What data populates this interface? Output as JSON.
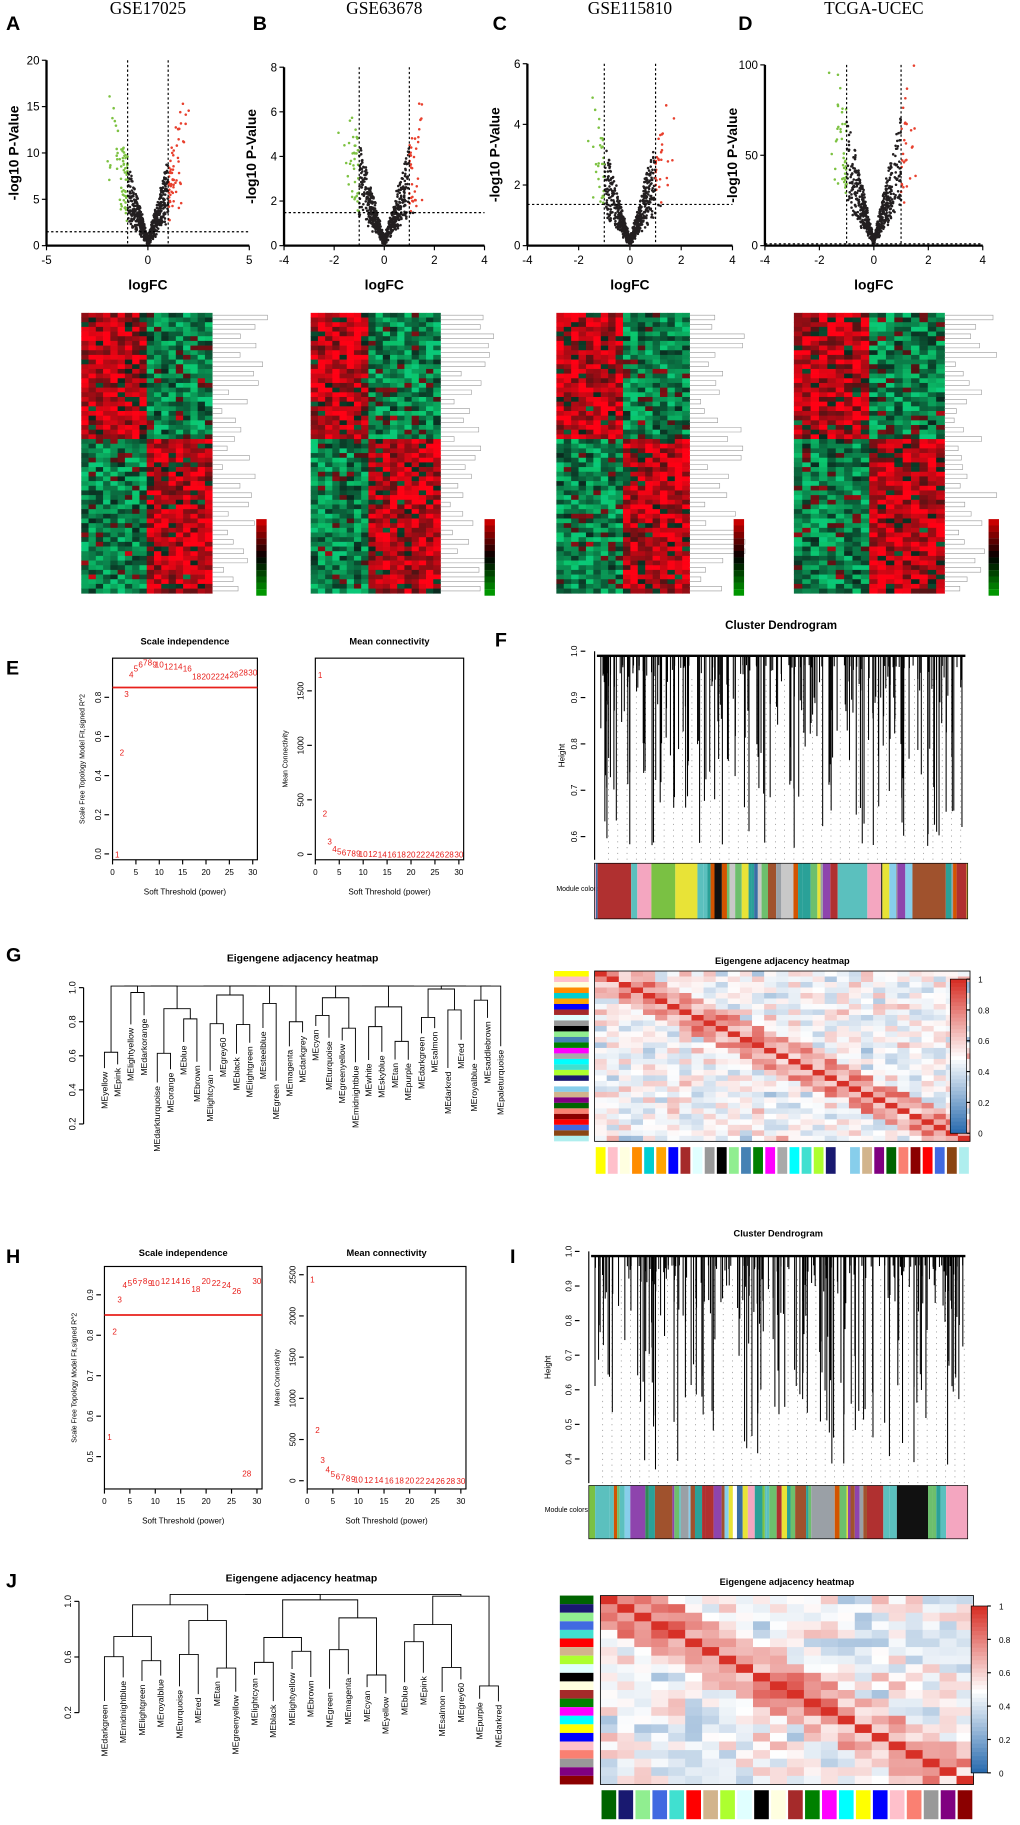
{
  "volcano": [
    {
      "letter": "A",
      "title": "GSE17025",
      "xlabel": "logFC",
      "ylabel": "-log10 P-Value",
      "xlim": [
        -5,
        5
      ],
      "ylim": [
        0,
        20
      ],
      "xticks": [
        -5,
        0,
        5
      ],
      "yticks": [
        0,
        5,
        10,
        15,
        20
      ]
    },
    {
      "letter": "B",
      "title": "GSE63678",
      "xlabel": "logFC",
      "ylabel": "-log10 P-Value",
      "xlim": [
        -4,
        4
      ],
      "ylim": [
        0,
        8
      ],
      "xticks": [
        -4,
        -2,
        0,
        2,
        4
      ],
      "yticks": [
        0,
        2,
        4,
        6,
        8
      ]
    },
    {
      "letter": "C",
      "title": "GSE115810",
      "xlabel": "logFC",
      "ylabel": "-log10 P-Value",
      "xlim": [
        -4,
        4
      ],
      "ylim": [
        0,
        6
      ],
      "xticks": [
        -4,
        -2,
        0,
        2,
        4
      ],
      "yticks": [
        0,
        2,
        4,
        6
      ]
    },
    {
      "letter": "D",
      "title": "TCGA-UCEC",
      "xlabel": "logFC",
      "ylabel": "-log10 P-Value",
      "xlim": [
        -4,
        4
      ],
      "ylim": [
        0,
        100
      ],
      "xticks": [
        -4,
        -2,
        0,
        2,
        4
      ],
      "yticks": [
        0,
        50,
        100
      ]
    }
  ],
  "soft": [
    {
      "letter": "E",
      "threshold": 0.85,
      "xlabel": "Soft Threshold (power)",
      "powers": [
        1,
        2,
        3,
        4,
        5,
        6,
        7,
        8,
        9,
        10,
        12,
        14,
        16,
        18,
        20,
        22,
        24,
        26,
        28,
        30
      ],
      "scale": {
        "title": "Scale independence",
        "ylabel": "Scale Free Topology Model Fit,signed R^2",
        "xlim": [
          0,
          31
        ],
        "ylim": [
          -0.03,
          1.0
        ],
        "xticks": [
          0,
          5,
          10,
          15,
          20,
          25,
          30
        ],
        "yticks": [
          {
            "value": 0,
            "label": "0.0"
          },
          0.2,
          0.4,
          0.6,
          0.8
        ],
        "values": [
          0.0,
          0.52,
          0.82,
          0.92,
          0.95,
          0.97,
          0.98,
          0.98,
          0.97,
          0.97,
          0.96,
          0.96,
          0.95,
          0.91,
          0.91,
          0.91,
          0.91,
          0.92,
          0.93,
          0.93
        ]
      },
      "conn": {
        "title": "Mean connectivity",
        "ylabel": "Mean Connectivity",
        "xlim": [
          0,
          31
        ],
        "ylim": [
          -50,
          1800
        ],
        "xticks": [
          0,
          5,
          10,
          15,
          20,
          25,
          30
        ],
        "yticks": [
          0,
          500,
          1000,
          1500
        ],
        "values": [
          1650,
          380,
          120,
          55,
          30,
          20,
          15,
          12,
          10,
          8,
          6,
          5,
          4,
          3,
          3,
          2,
          2,
          2,
          1,
          1
        ]
      }
    },
    {
      "letter": "H",
      "threshold": 0.85,
      "xlabel": "Soft Threshold (power)",
      "powers": [
        1,
        2,
        3,
        4,
        5,
        6,
        7,
        8,
        9,
        10,
        12,
        14,
        16,
        18,
        20,
        22,
        24,
        26,
        28,
        30
      ],
      "scale": {
        "title": "Scale independence",
        "ylabel": "Scale Free Topology Model Fit,signed R^2",
        "xlim": [
          0,
          31
        ],
        "ylim": [
          0.42,
          0.97
        ],
        "xticks": [
          0,
          5,
          10,
          15,
          20,
          25,
          30
        ],
        "yticks": [
          0.5,
          0.6,
          0.7,
          0.8,
          0.9
        ],
        "values": [
          0.55,
          0.81,
          0.89,
          0.925,
          0.93,
          0.935,
          0.93,
          0.935,
          0.93,
          0.93,
          0.935,
          0.935,
          0.935,
          0.915,
          0.935,
          0.93,
          0.925,
          0.91,
          0.46,
          0.935
        ]
      },
      "conn": {
        "title": "Mean connectivity",
        "ylabel": "Mean Connectivity",
        "xlim": [
          0,
          31
        ],
        "ylim": [
          -100,
          2600
        ],
        "xticks": [
          0,
          5,
          10,
          15,
          20,
          25,
          30
        ],
        "yticks": [
          0,
          500,
          1000,
          1500,
          2000,
          2500
        ],
        "values": [
          2450,
          620,
          260,
          140,
          90,
          60,
          45,
          35,
          28,
          22,
          16,
          12,
          10,
          8,
          7,
          6,
          5,
          4,
          4,
          3
        ]
      }
    }
  ],
  "dendro": [
    {
      "letter": "F",
      "title": "Cluster Dendrogram",
      "ylabel": "Height",
      "colors_label": "Module colors",
      "ylim": [
        0.55,
        1.0
      ],
      "yticks": [
        0.6,
        0.7,
        0.8,
        0.9,
        {
          "value": 1,
          "label": "1.0"
        }
      ]
    },
    {
      "letter": "I",
      "title": "Cluster Dendrogram",
      "ylabel": "Height",
      "colors_label": "Module colors",
      "ylim": [
        0.33,
        1.0
      ],
      "yticks": [
        0.4,
        0.5,
        0.6,
        0.7,
        0.8,
        0.9,
        {
          "value": 1,
          "label": "1.0"
        }
      ]
    }
  ],
  "eigen": [
    {
      "letter": "G",
      "tree_title": "Eigengene adjacency heatmap",
      "heat_title": "Eigengene adjacency heatmap",
      "yticks": [
        0.2,
        0.4,
        0.6,
        0.8,
        {
          "value": 1,
          "label": "1.0"
        }
      ],
      "ylim": [
        0.2,
        1.05
      ],
      "scale_ticks": [
        0,
        0.2,
        0.4,
        0.6,
        0.8,
        1
      ],
      "leaves": [
        "MEyellow",
        "MEpink",
        "MElightyellow",
        "MEdarkorange",
        "MEdarkturquoise",
        "MEorange",
        "MEblue",
        "MEbrown",
        "MElightcyan",
        "MEgrey60",
        "MEblack",
        "MElightgreen",
        "MEsteelblue",
        "MEgreen",
        "MEmagenta",
        "MEdarkgrey",
        "MEcyan",
        "MEturquoise",
        "MEgreenyellow",
        "MEmidnightblue",
        "MEwhite",
        "MEskyblue",
        "MEtan",
        "MEpurple",
        "MEdarkgreen",
        "MEsalmon",
        "MEdarkred",
        "MEred",
        "MEroyalblue",
        "MEsaddlebrown",
        "MEpaleturquoise"
      ]
    },
    {
      "letter": "J",
      "tree_title": "Eigengene adjacency heatmap",
      "heat_title": "Eigengene adjacency heatmap",
      "yticks": [
        0.2,
        0.6,
        {
          "value": 1,
          "label": "1.0"
        }
      ],
      "ylim": [
        0.2,
        1.1
      ],
      "scale_ticks": [
        0,
        0.2,
        0.4,
        0.6,
        0.8,
        1
      ],
      "leaves": [
        "MEdarkgreen",
        "MEmidnightblue",
        "MElightgreen",
        "MEroyalblue",
        "MEturquoise",
        "MEred",
        "MEtan",
        "MEgreenyellow",
        "MElightcyan",
        "MEblack",
        "MElightyellow",
        "MEbrown",
        "MEgreen",
        "MEmagenta",
        "MEcyan",
        "MEyellow",
        "MEblue",
        "MEpink",
        "MEsalmon",
        "MEgrey60",
        "MEpurple",
        "MEdarkred"
      ]
    }
  ]
}
